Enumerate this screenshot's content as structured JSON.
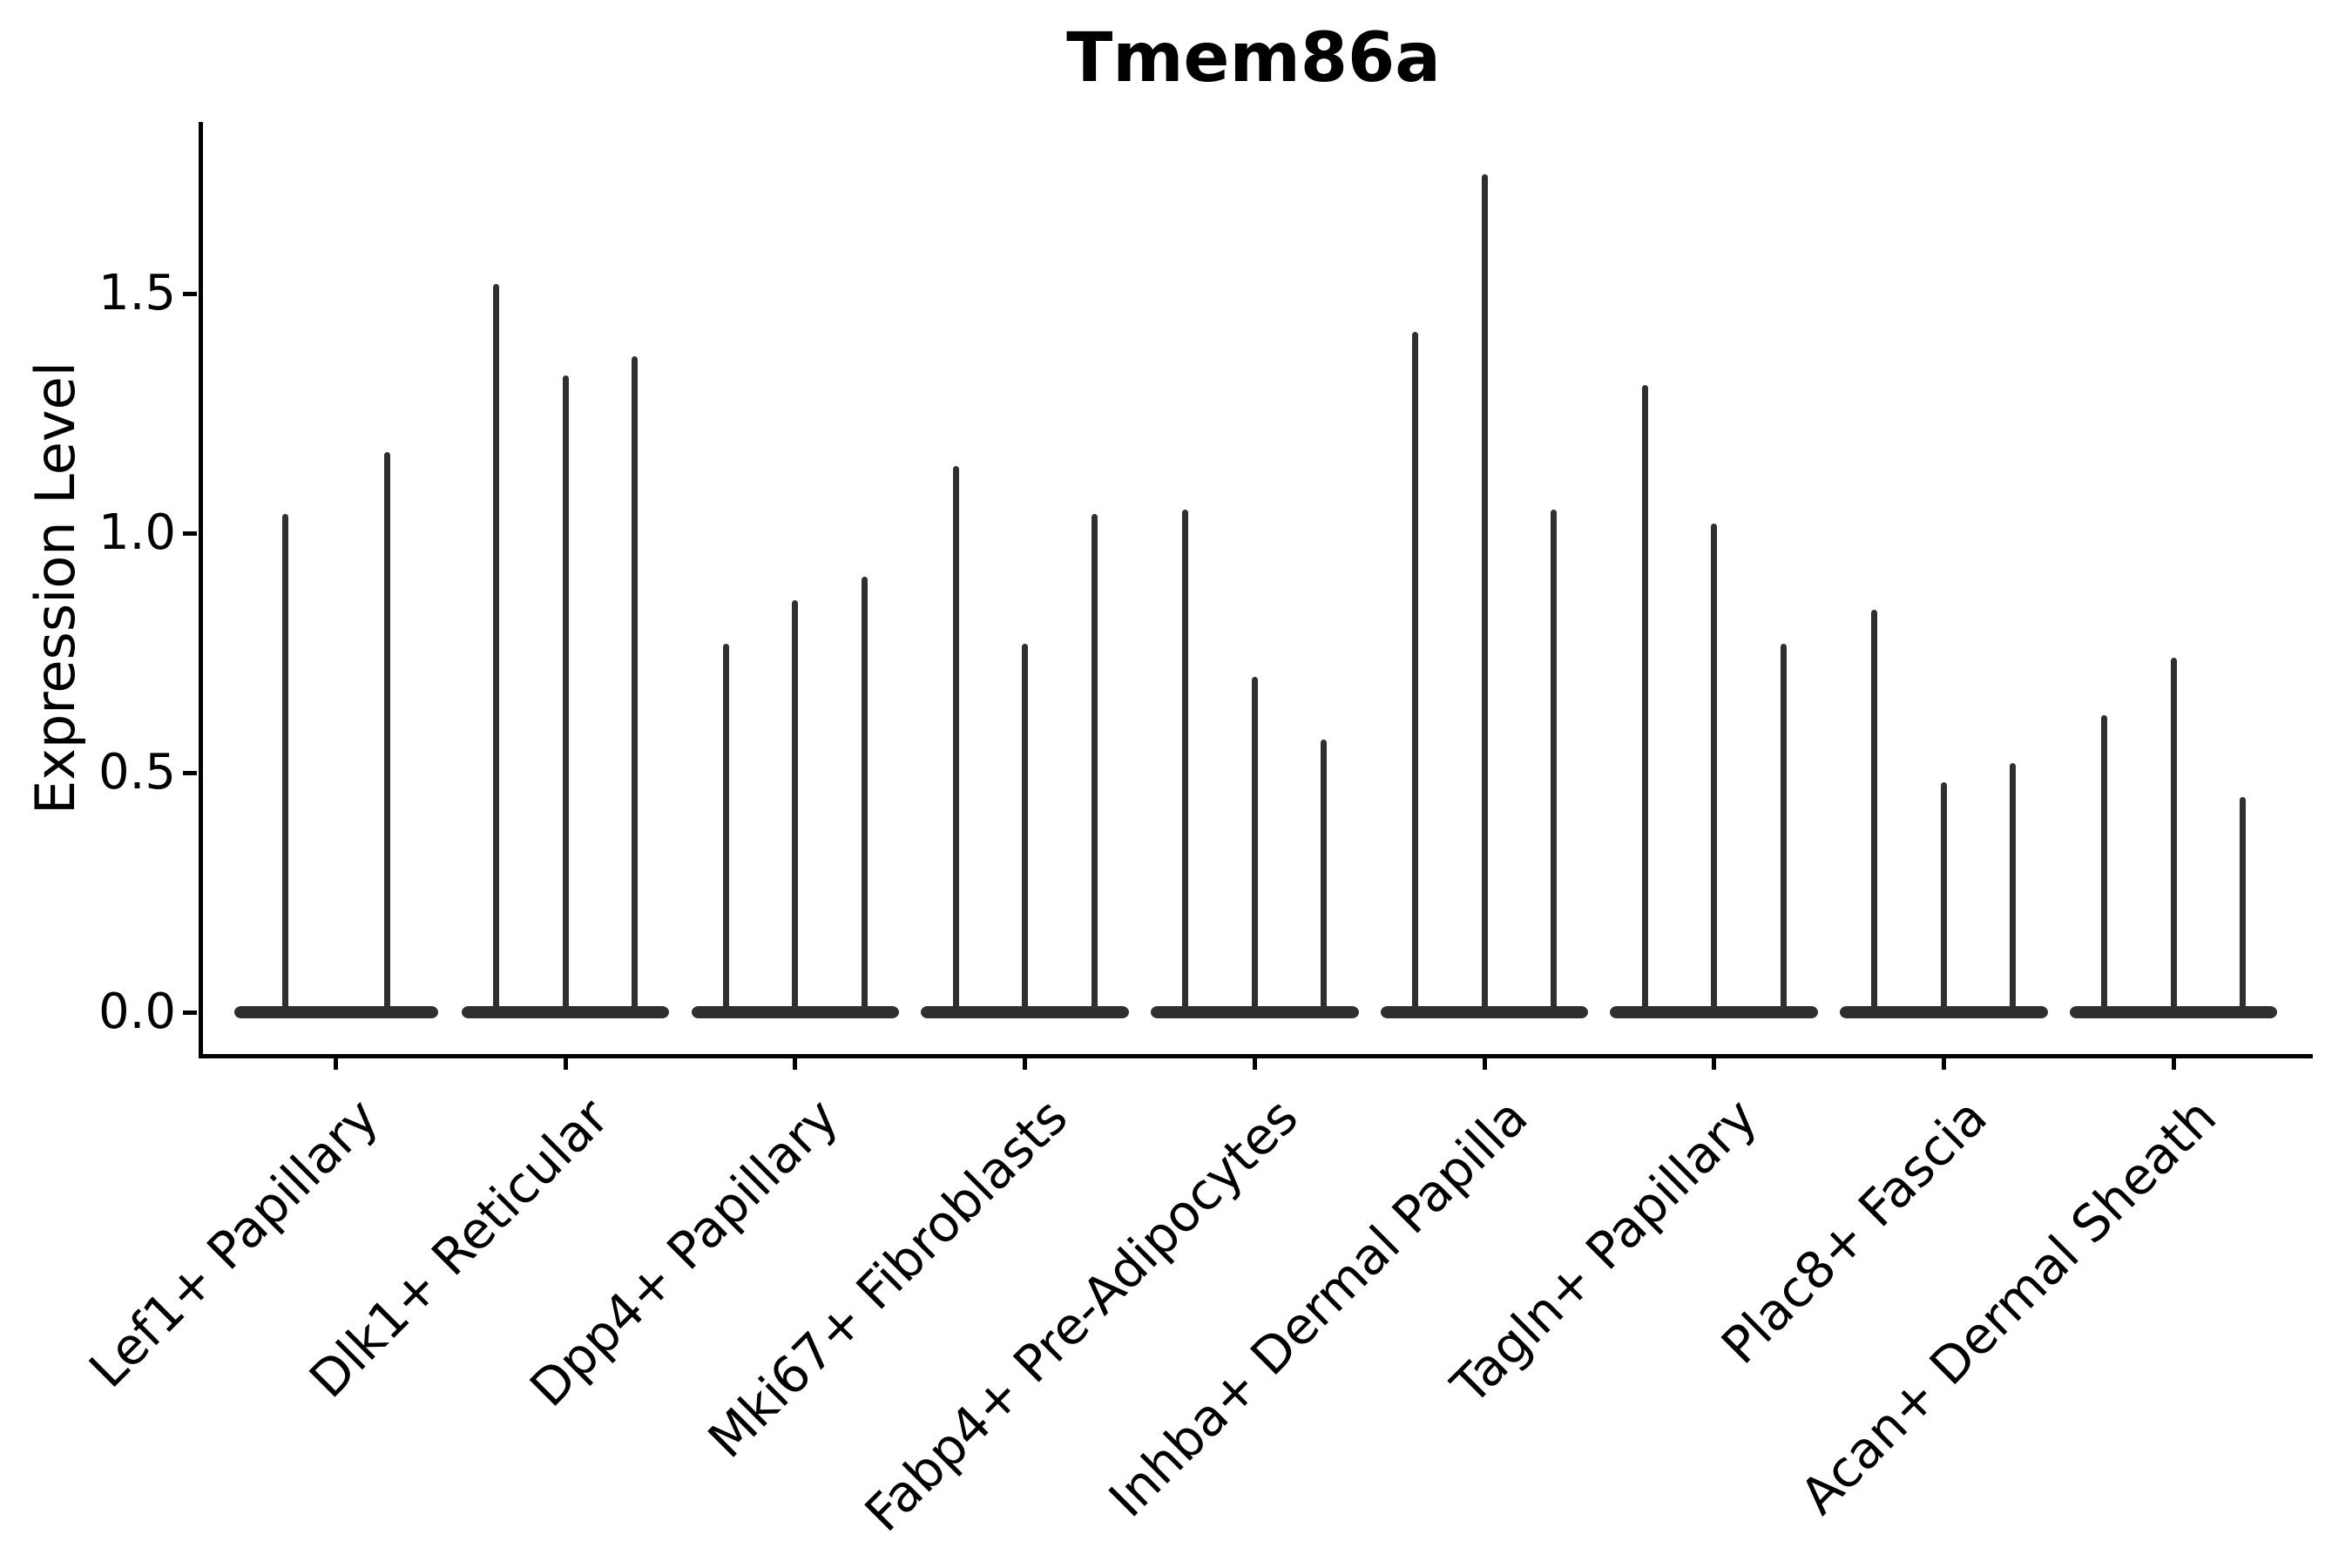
{
  "chart_data": {
    "type": "violin",
    "title": "Tmem86a",
    "ylabel": "Expression Level",
    "xlabel": "",
    "yticks": [
      0.0,
      0.5,
      1.0,
      1.5
    ],
    "ytick_labels": [
      "0.0",
      "0.5",
      "1.0",
      "1.5"
    ],
    "ylim": [
      -0.09,
      1.86
    ],
    "grid": false,
    "legend": "none",
    "violin_color": "#2f2f2f",
    "spines": "left-bottom-only",
    "description": "Violin plot; each category holds 2-3 violins whose density mass sits at expression 0 (wide flat base) with a thin vertical tail reaching the listed maximum expression value.",
    "categories": [
      {
        "label": "Lef1+ Papillary",
        "violin_maxima": [
          1.04,
          1.17
        ]
      },
      {
        "label": "Dlk1+ Reticular",
        "violin_maxima": [
          1.52,
          1.33,
          1.37
        ]
      },
      {
        "label": "Dpp4+ Papillary",
        "violin_maxima": [
          0.77,
          0.86,
          0.91
        ]
      },
      {
        "label": "Mki67+ Fibroblasts",
        "violin_maxima": [
          1.14,
          0.77,
          1.04
        ]
      },
      {
        "label": "Fabp4+ Pre-Adipocytes",
        "violin_maxima": [
          1.05,
          0.7,
          0.57
        ]
      },
      {
        "label": "Inhba+ Dermal Papilla",
        "violin_maxima": [
          1.42,
          1.75,
          1.05
        ]
      },
      {
        "label": "Tagln+ Papillary",
        "violin_maxima": [
          1.31,
          1.02,
          0.77
        ]
      },
      {
        "label": "Plac8+ Fascia",
        "violin_maxima": [
          0.84,
          0.48,
          0.52
        ]
      },
      {
        "label": "Acan+ Dermal Sheath",
        "violin_maxima": [
          0.62,
          0.74,
          0.45
        ]
      }
    ]
  }
}
